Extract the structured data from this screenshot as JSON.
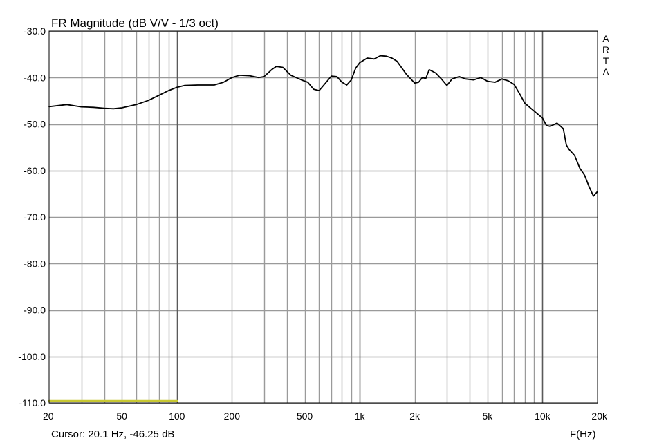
{
  "chart_data": {
    "type": "line",
    "title": "FR Magnitude (dB V/V - 1/3 oct)",
    "xlabel": "F(Hz)",
    "ylabel": "",
    "x_scale": "log",
    "xlim": [
      20,
      20000
    ],
    "ylim": [
      -110,
      -30
    ],
    "grid": true,
    "y_ticks": [
      -30,
      -40,
      -50,
      -60,
      -70,
      -80,
      -90,
      -100,
      -110
    ],
    "y_tick_labels": [
      "-30.0",
      "-40.0",
      "-50.0",
      "-60.0",
      "-70.0",
      "-80.0",
      "-90.0",
      "-100.0",
      "-110.0"
    ],
    "x_ticks": [
      20,
      50,
      100,
      200,
      500,
      1000,
      2000,
      5000,
      10000,
      20000
    ],
    "x_tick_labels": [
      "20",
      "50",
      "100",
      "200",
      "500",
      "1k",
      "2k",
      "5k",
      "10k",
      "20k"
    ],
    "major_x_grid": [
      100,
      1000,
      10000
    ],
    "minor_x_grid": [
      30,
      40,
      50,
      60,
      70,
      80,
      90,
      200,
      300,
      400,
      500,
      600,
      700,
      800,
      900,
      2000,
      3000,
      4000,
      5000,
      6000,
      7000,
      8000,
      9000
    ],
    "watermark": [
      "A",
      "R",
      "T",
      "A"
    ],
    "cursor_text": "Cursor: 20.1 Hz, -46.25 dB",
    "series": [
      {
        "color": "#000000",
        "x": [
          20,
          25,
          30,
          35,
          40,
          45,
          50,
          60,
          70,
          80,
          90,
          100,
          110,
          130,
          160,
          180,
          200,
          220,
          250,
          280,
          300,
          330,
          350,
          380,
          420,
          480,
          520,
          560,
          600,
          650,
          700,
          750,
          800,
          850,
          900,
          950,
          1000,
          1100,
          1200,
          1300,
          1400,
          1500,
          1600,
          1800,
          2000,
          2100,
          2200,
          2300,
          2400,
          2600,
          2800,
          3000,
          3200,
          3500,
          3800,
          4200,
          4600,
          5000,
          5500,
          6000,
          6500,
          7000,
          7500,
          8000,
          9000,
          10000,
          10500,
          11000,
          12000,
          13000,
          13500,
          14000,
          15000,
          16000,
          17000,
          18000,
          19000,
          20000
        ],
        "y": [
          -46.25,
          -45.8,
          -46.3,
          -46.4,
          -46.6,
          -46.7,
          -46.5,
          -45.8,
          -44.9,
          -43.8,
          -42.8,
          -42.1,
          -41.7,
          -41.6,
          -41.6,
          -41.0,
          -40.0,
          -39.5,
          -39.6,
          -40.0,
          -39.8,
          -38.3,
          -37.6,
          -37.8,
          -39.5,
          -40.5,
          -41.0,
          -42.5,
          -42.8,
          -41.2,
          -39.7,
          -39.8,
          -41.0,
          -41.6,
          -40.5,
          -38.0,
          -36.8,
          -35.8,
          -36.0,
          -35.3,
          -35.4,
          -35.8,
          -36.5,
          -39.3,
          -41.2,
          -41.0,
          -40.0,
          -40.2,
          -38.3,
          -39.0,
          -40.3,
          -41.7,
          -40.3,
          -39.8,
          -40.3,
          -40.5,
          -40.0,
          -40.8,
          -41.0,
          -40.3,
          -40.7,
          -41.5,
          -43.5,
          -45.5,
          -47.2,
          -48.7,
          -50.3,
          -50.5,
          -49.8,
          -51.0,
          -54.5,
          -55.5,
          -56.8,
          -59.5,
          -61.0,
          -63.5,
          -65.5,
          -64.5
        ]
      },
      {
        "color": "#c8c832",
        "x": [
          20,
          100
        ],
        "y": [
          -109.6,
          -109.6
        ]
      }
    ]
  }
}
